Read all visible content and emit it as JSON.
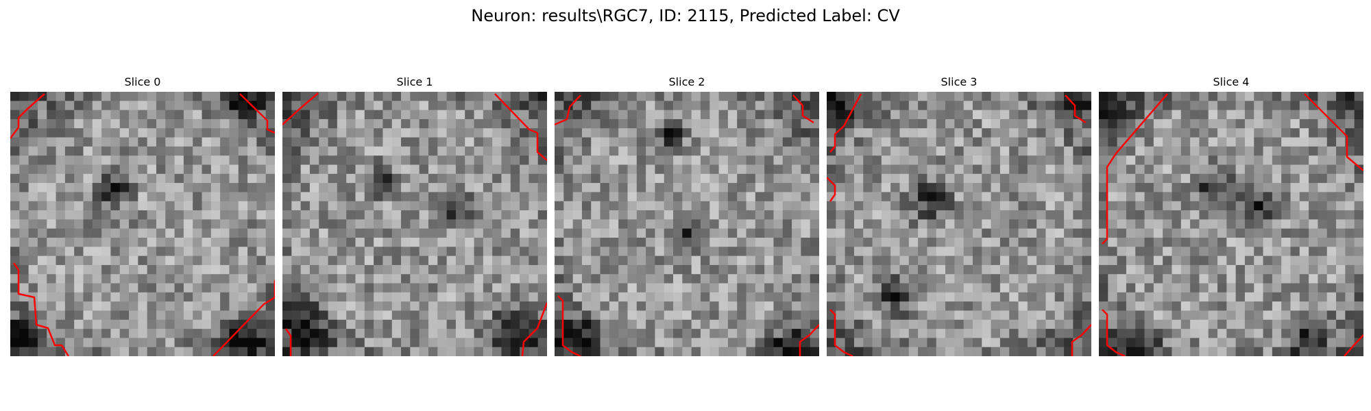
{
  "figure": {
    "title": "Neuron: results\\RGC7, ID: 2115, Predicted Label: CV"
  },
  "panels": [
    {
      "title": "Slice 0"
    },
    {
      "title": "Slice 1"
    },
    {
      "title": "Slice 2"
    },
    {
      "title": "Slice 3"
    },
    {
      "title": "Slice 4"
    }
  ],
  "colors": {
    "outline": "#ff0000",
    "background": "#ffffff",
    "pixel_colormap": "gray"
  }
}
